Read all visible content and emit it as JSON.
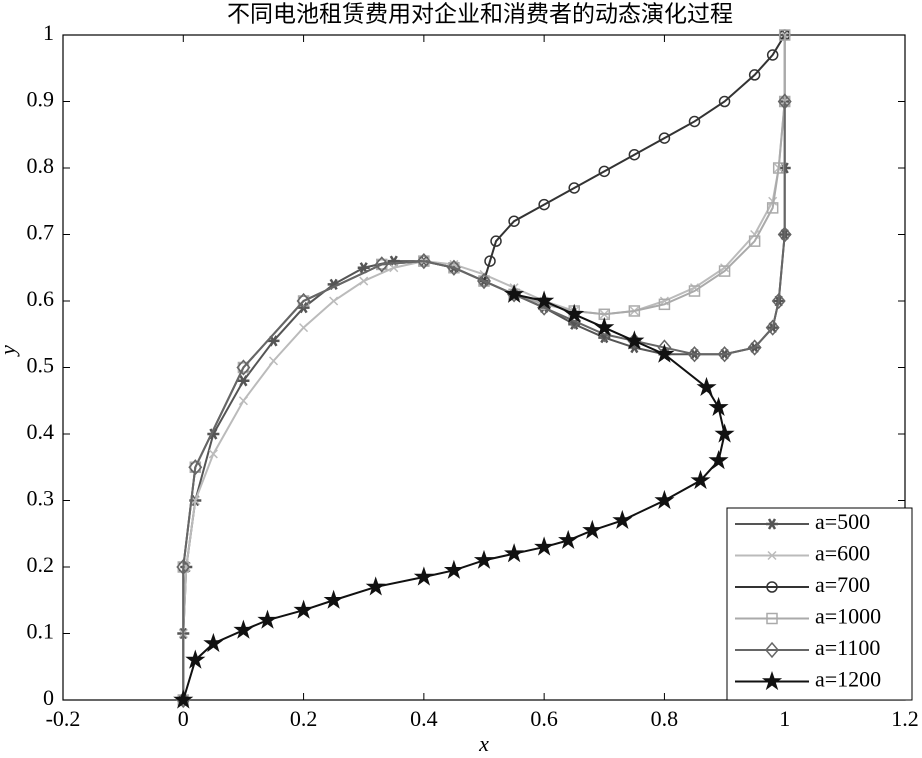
{
  "chart_data": {
    "type": "line",
    "title": "不同电池租赁费用对企业和消费者的动态演化过程",
    "x_label": "x",
    "y_label": "y",
    "xlim": [
      -0.2,
      1.2
    ],
    "xticks": [
      -0.2,
      0,
      0.2,
      0.4,
      0.6,
      0.8,
      1,
      1.2
    ],
    "ylim": [
      0,
      1
    ],
    "yticks": [
      0,
      0.1,
      0.2,
      0.3,
      0.4,
      0.5,
      0.6,
      0.7,
      0.8,
      0.9,
      1
    ],
    "grid": false,
    "legend": "lower right",
    "series": [
      {
        "name": "a=500",
        "color": "#555555",
        "marker": "asterisk",
        "x": [
          0,
          0,
          0.005,
          0.02,
          0.05,
          0.1,
          0.15,
          0.2,
          0.25,
          0.3,
          0.35,
          0.4,
          0.45,
          0.5,
          0.55,
          0.6,
          0.65,
          0.7,
          0.75,
          0.8,
          0.85,
          0.9,
          0.95,
          0.98,
          0.99,
          1,
          1,
          1,
          1
        ],
        "values": [
          0,
          0.1,
          0.2,
          0.3,
          0.4,
          0.48,
          0.54,
          0.59,
          0.625,
          0.65,
          0.66,
          0.66,
          0.65,
          0.63,
          0.61,
          0.59,
          0.565,
          0.545,
          0.53,
          0.52,
          0.52,
          0.52,
          0.53,
          0.56,
          0.6,
          0.7,
          0.8,
          0.9,
          1
        ]
      },
      {
        "name": "a=600",
        "color": "#bbbbbb",
        "marker": "x",
        "x": [
          0,
          0,
          0.005,
          0.02,
          0.05,
          0.1,
          0.15,
          0.2,
          0.25,
          0.3,
          0.35,
          0.4,
          0.45,
          0.5,
          0.55,
          0.6,
          0.65,
          0.7,
          0.75,
          0.8,
          0.85,
          0.9,
          0.95,
          0.98,
          0.99,
          1,
          1
        ],
        "values": [
          0,
          0.1,
          0.2,
          0.3,
          0.37,
          0.45,
          0.51,
          0.56,
          0.6,
          0.63,
          0.65,
          0.66,
          0.655,
          0.64,
          0.62,
          0.6,
          0.585,
          0.58,
          0.585,
          0.6,
          0.62,
          0.65,
          0.7,
          0.75,
          0.8,
          0.9,
          1
        ]
      },
      {
        "name": "a=700",
        "color": "#333333",
        "marker": "circle",
        "x": [
          0,
          0,
          0.02,
          0.1,
          0.2,
          0.33,
          0.4,
          0.45,
          0.5,
          0.51,
          0.52,
          0.55,
          0.6,
          0.65,
          0.7,
          0.75,
          0.8,
          0.85,
          0.9,
          0.95,
          0.98,
          1
        ],
        "values": [
          0,
          0.2,
          0.35,
          0.5,
          0.6,
          0.655,
          0.66,
          0.65,
          0.63,
          0.66,
          0.69,
          0.72,
          0.745,
          0.77,
          0.795,
          0.82,
          0.845,
          0.87,
          0.9,
          0.94,
          0.97,
          1
        ]
      },
      {
        "name": "a=1000",
        "color": "#aaaaaa",
        "marker": "square",
        "x": [
          0,
          0,
          0.02,
          0.1,
          0.2,
          0.33,
          0.4,
          0.45,
          0.5,
          0.55,
          0.6,
          0.65,
          0.7,
          0.75,
          0.8,
          0.85,
          0.9,
          0.95,
          0.98,
          0.99,
          1,
          1
        ],
        "values": [
          0,
          0.2,
          0.35,
          0.5,
          0.6,
          0.655,
          0.66,
          0.65,
          0.63,
          0.61,
          0.595,
          0.585,
          0.58,
          0.585,
          0.595,
          0.615,
          0.645,
          0.69,
          0.74,
          0.8,
          0.9,
          1
        ]
      },
      {
        "name": "a=1100",
        "color": "#666666",
        "marker": "diamond",
        "x": [
          0,
          0,
          0.02,
          0.1,
          0.2,
          0.33,
          0.4,
          0.45,
          0.5,
          0.55,
          0.6,
          0.65,
          0.7,
          0.75,
          0.8,
          0.85,
          0.9,
          0.95,
          0.98,
          0.99,
          1,
          1
        ],
        "values": [
          0,
          0.2,
          0.35,
          0.5,
          0.6,
          0.655,
          0.66,
          0.65,
          0.63,
          0.61,
          0.59,
          0.57,
          0.55,
          0.54,
          0.53,
          0.52,
          0.52,
          0.53,
          0.56,
          0.6,
          0.7,
          0.9
        ]
      },
      {
        "name": "a=1200",
        "color": "#111111",
        "marker": "star",
        "x": [
          0,
          0.02,
          0.05,
          0.1,
          0.14,
          0.2,
          0.25,
          0.32,
          0.4,
          0.45,
          0.5,
          0.55,
          0.6,
          0.64,
          0.68,
          0.73,
          0.8,
          0.86,
          0.89,
          0.9,
          0.89,
          0.87,
          0.8,
          0.75,
          0.7,
          0.65,
          0.6,
          0.55
        ],
        "values": [
          0,
          0.06,
          0.085,
          0.105,
          0.12,
          0.135,
          0.15,
          0.17,
          0.185,
          0.195,
          0.21,
          0.22,
          0.23,
          0.24,
          0.255,
          0.27,
          0.3,
          0.33,
          0.36,
          0.4,
          0.44,
          0.47,
          0.52,
          0.54,
          0.56,
          0.58,
          0.6,
          0.61
        ]
      }
    ]
  }
}
